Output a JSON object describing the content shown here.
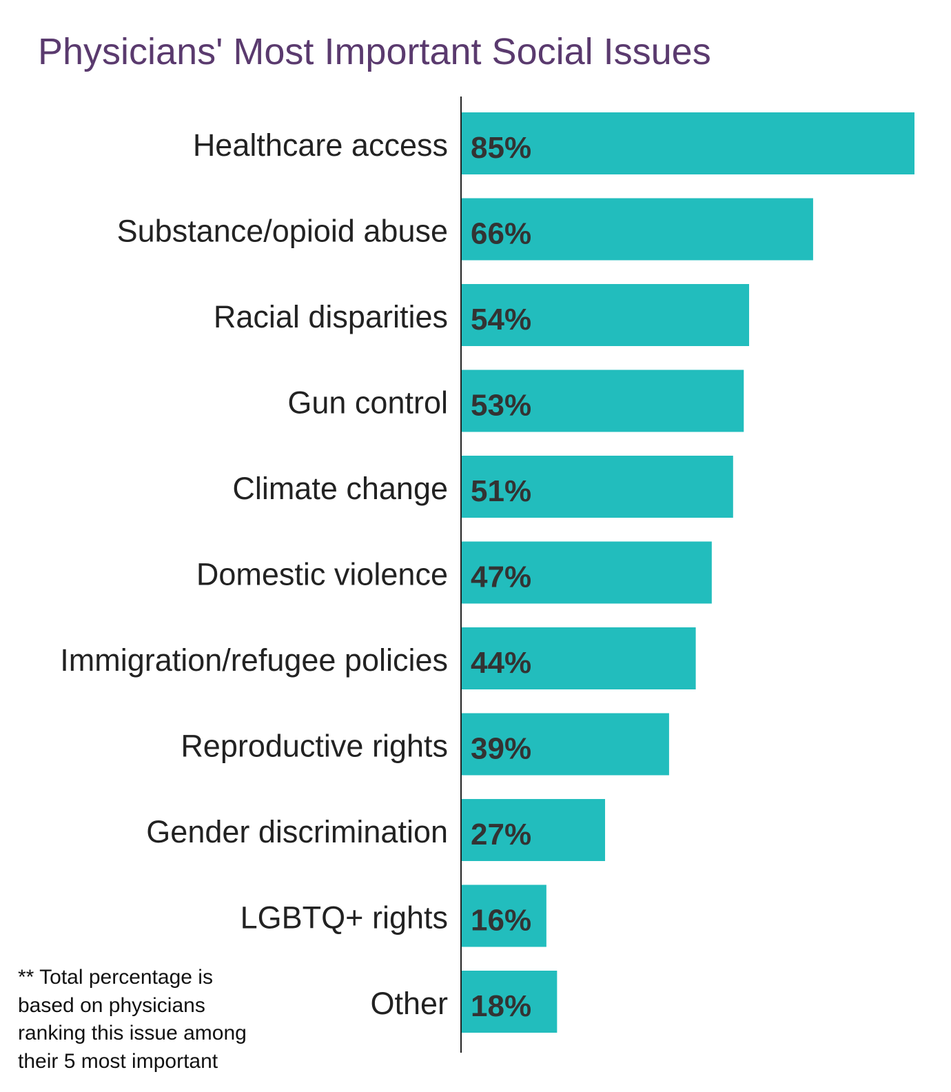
{
  "chart_data": {
    "type": "bar",
    "orientation": "horizontal",
    "title": "Physicians' Most Important Social Issues",
    "categories": [
      "Healthcare access",
      "Substance/opioid abuse",
      "Racial disparities",
      "Gun control",
      "Climate change",
      "Domestic violence",
      "Immigration/refugee policies",
      "Reproductive rights",
      "Gender discrimination",
      "LGBTQ+ rights",
      "Other"
    ],
    "values": [
      85,
      66,
      54,
      53,
      51,
      47,
      44,
      39,
      27,
      16,
      18
    ],
    "value_labels": [
      "85%",
      "66%",
      "54%",
      "53%",
      "51%",
      "47%",
      "44%",
      "39%",
      "27%",
      "16%",
      "18%"
    ],
    "xlim": [
      0,
      85
    ],
    "grid": false,
    "bar_color": "#22bdbd",
    "title_color": "#5a3a6e",
    "footnote": "** Total percentage is\nbased on physicians\nranking this issue among\ntheir 5 most important"
  }
}
